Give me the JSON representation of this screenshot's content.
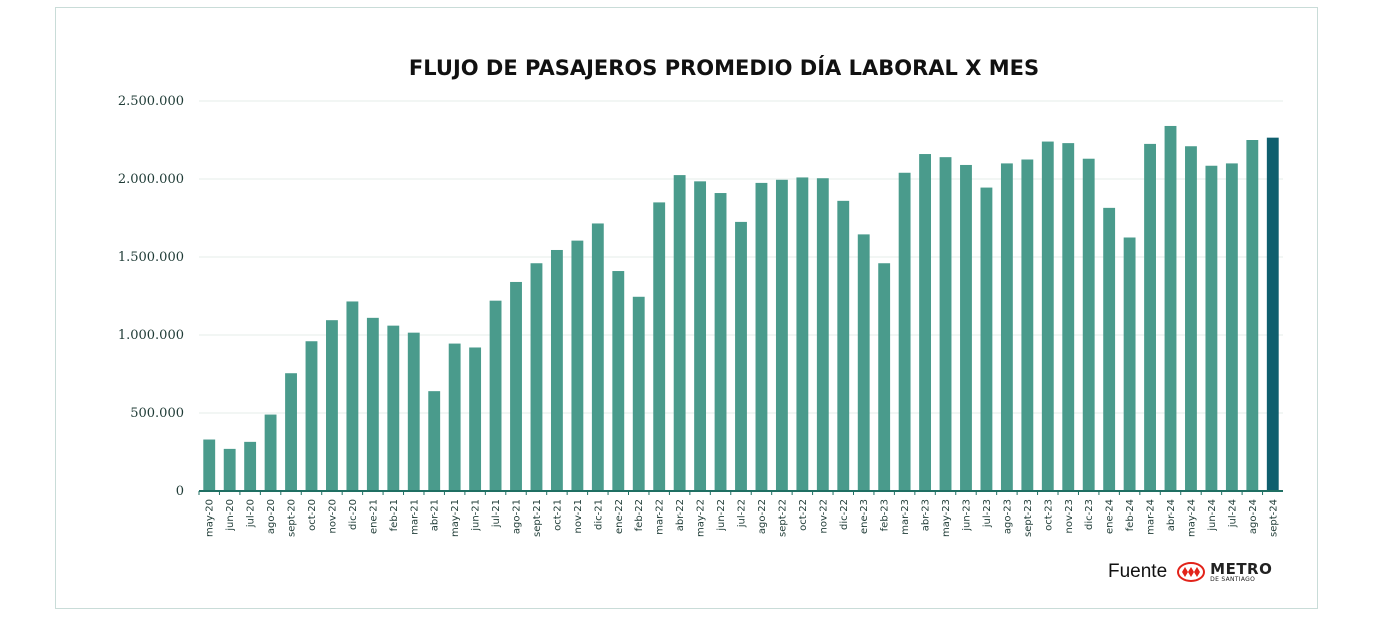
{
  "chart_data": {
    "type": "bar",
    "title": "FLUJO DE PASAJEROS PROMEDIO DÍA LABORAL X MES",
    "xlabel": "",
    "ylabel": "",
    "ylim": [
      0,
      2500000
    ],
    "yticks": [
      0,
      500000,
      1000000,
      1500000,
      2000000,
      2500000
    ],
    "ytick_labels": [
      "0",
      "500.000",
      "1.000.000",
      "1.500.000",
      "2.000.000",
      "2.500.000"
    ],
    "grid": true,
    "legend": "none",
    "colors": {
      "bar": "#4a9b8c",
      "highlight": "#0f5f6e",
      "axis": "#1f6f63",
      "grid": "#e6ecea"
    },
    "highlight_index": 52,
    "categories": [
      "may-20",
      "jun-20",
      "jul-20",
      "ago-20",
      "sept-20",
      "oct-20",
      "nov-20",
      "dic-20",
      "ene-21",
      "feb-21",
      "mar-21",
      "abr-21",
      "may-21",
      "jun-21",
      "jul-21",
      "ago-21",
      "sept-21",
      "oct-21",
      "nov-21",
      "dic-21",
      "ene-22",
      "feb-22",
      "mar-22",
      "abr-22",
      "may-22",
      "jun-22",
      "jul-22",
      "ago-22",
      "sept-22",
      "oct-22",
      "nov-22",
      "dic-22",
      "ene-23",
      "feb-23",
      "mar-23",
      "abr-23",
      "may-23",
      "jun-23",
      "jul-23",
      "ago-23",
      "sept-23",
      "oct-23",
      "nov-23",
      "dic-23",
      "ene-24",
      "feb-24",
      "mar-24",
      "abr-24",
      "may-24",
      "jun-24",
      "jul-24",
      "ago-24",
      "sept-24"
    ],
    "values": [
      330000,
      270000,
      315000,
      490000,
      755000,
      960000,
      1095000,
      1215000,
      1110000,
      1060000,
      1015000,
      640000,
      945000,
      920000,
      1220000,
      1340000,
      1460000,
      1545000,
      1605000,
      1715000,
      1410000,
      1245000,
      1850000,
      2025000,
      1985000,
      1910000,
      1725000,
      1975000,
      1995000,
      2010000,
      2005000,
      1860000,
      1645000,
      1460000,
      2040000,
      2160000,
      2140000,
      2090000,
      1945000,
      2100000,
      2125000,
      2240000,
      2230000,
      2130000,
      1815000,
      1625000,
      2225000,
      2340000,
      2210000,
      2085000,
      2100000,
      2250000,
      2265000
    ]
  },
  "source": {
    "label": "Fuente",
    "logo_text": "METRO",
    "logo_subtext": "DE SANTIAGO",
    "logo_color": "#e2231a"
  }
}
